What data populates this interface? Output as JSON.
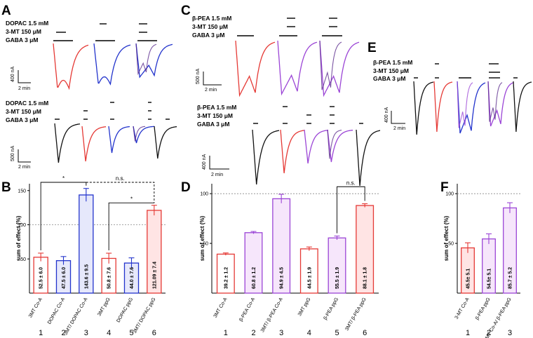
{
  "colors": {
    "black": "#111111",
    "red": "#e53935",
    "blue": "#2233cc",
    "violet": "#9b45d6",
    "purple": "#5a2a8c",
    "pink": "#f4a6a6",
    "lilac": "#e2b3f2"
  },
  "panels": {
    "A": {
      "label": "A",
      "top": {
        "drugs": [
          "DOPAC 1.5 mM",
          "3-MT  150 μM",
          "GABA 3 μM"
        ],
        "scale_y": "400 nA",
        "scale_x": "2 min"
      },
      "bottom": {
        "drugs": [
          "DOPAC 1.5 mM",
          "3-MT  150 μM",
          "GABA 3 μM"
        ],
        "scale_y": "500 nA",
        "scale_x": "2 min"
      }
    },
    "C": {
      "label": "C",
      "top": {
        "drugs": [
          "β-PEA 1.5 mM",
          "3-MT  150 μM",
          "GABA 3 μM"
        ],
        "scale_y": "500 nA",
        "scale_x": "2 min"
      },
      "bottom": {
        "drugs": [
          "β-PEA 1.5 mM",
          "3-MT  150 μM",
          "GABA 3 μM"
        ],
        "scale_y": "400 nA",
        "scale_x": "2 min"
      }
    },
    "E": {
      "label": "E",
      "drugs": [
        "β-PEA 1.5 mM",
        "3-MT  150 μM",
        "GABA 3 μM"
      ],
      "scale_y": "400 nA",
      "scale_x": "2 min"
    }
  },
  "chart_data": [
    {
      "panel": "B",
      "type": "bar",
      "ylabel": "sum of effect (%)",
      "ylim": [
        0,
        160
      ],
      "yticks": [
        50,
        100,
        150
      ],
      "reference_line": 100,
      "categories": [
        "3MT Co-A",
        "DOPAC Co-A",
        "3MT/ DOPAC Co-A",
        "3MT ppG",
        "DOPAC ppG",
        "3MT/ DOPAC ppG"
      ],
      "numbers": [
        "1",
        "2",
        "3",
        "4",
        "5",
        "6"
      ],
      "values": [
        52.5,
        47.5,
        143.6,
        50.8,
        44.0,
        121.09
      ],
      "errors": [
        6.0,
        6.0,
        9.5,
        7.6,
        7.6,
        7.4
      ],
      "value_labels": [
        "52.5 ± 6.0",
        "47.5 ± 6.0",
        "143.6 ± 9.5",
        "50.8 ± 7.6",
        "44.0 ± 7.6",
        "121.09 ± 7.4"
      ],
      "colors": [
        "red",
        "blue",
        "blue",
        "red",
        "blue",
        "red"
      ],
      "fills": [
        "#ffffff",
        "#e6e8fb",
        "#e6e8fb",
        "#ffffff",
        "#e6e8fb",
        "#ffe4e4"
      ],
      "significance": [
        {
          "from": 1,
          "to": 3,
          "label": "*",
          "style": "solid"
        },
        {
          "from": 3,
          "to": 6,
          "label": "n.s.",
          "style": "dashed"
        },
        {
          "from": 4,
          "to": 6,
          "label": "*",
          "style": "solid"
        }
      ]
    },
    {
      "panel": "D",
      "type": "bar",
      "ylabel": "sum of effect (%)",
      "ylim": [
        0,
        110
      ],
      "yticks": [
        50,
        100
      ],
      "reference_line": 100,
      "categories": [
        "3MT Co-A",
        "β-PEA Co-A",
        "3MT/ β-PEA Co-A",
        "3MT ppG",
        "β-PEA ppG",
        "3MT/ β-PEA ppG"
      ],
      "numbers": [
        "1",
        "2",
        "3",
        "4",
        "5",
        "6"
      ],
      "values": [
        39.2,
        60.8,
        94.9,
        44.5,
        55.5,
        88.1
      ],
      "errors": [
        1.2,
        1.2,
        4.5,
        1.9,
        1.9,
        1.8
      ],
      "value_labels": [
        "39.2 ± 1.2",
        "60.8 ± 1.2",
        "94.9 ± 4.5",
        "44.5 ± 1.9",
        "55.5 ± 1.9",
        "88.1 ± 1.8"
      ],
      "colors": [
        "red",
        "violet",
        "violet",
        "red",
        "violet",
        "red"
      ],
      "fills": [
        "#ffffff",
        "#f6e6fb",
        "#f6e6fb",
        "#ffffff",
        "#f6e6fb",
        "#ffe4e4"
      ],
      "significance": [
        {
          "from": 5,
          "to": 6,
          "label": "n.s.",
          "style": "solid"
        }
      ]
    },
    {
      "panel": "F",
      "type": "bar",
      "ylabel": "sum of effect (%)",
      "ylim": [
        0,
        110
      ],
      "yticks": [
        50,
        100
      ],
      "reference_line": 100,
      "categories": [
        "3-MT Co-A",
        "β-PEA ppG",
        "3-MT Co-A/ β-PEA ppG"
      ],
      "numbers": [
        "1",
        "2",
        "3"
      ],
      "values": [
        45.5,
        54.5,
        85.7
      ],
      "errors": [
        5.1,
        5.1,
        5.2
      ],
      "value_labels": [
        "45.5± 5.1",
        "54.5± 5.1",
        "85.7 ± 5.2"
      ],
      "colors": [
        "red",
        "violet",
        "violet"
      ],
      "fills": [
        "#ffe4e4",
        "#f6e6fb",
        "#f6e6fb"
      ],
      "significance": []
    }
  ],
  "bar_panel_labels": [
    "B",
    "D",
    "F"
  ]
}
